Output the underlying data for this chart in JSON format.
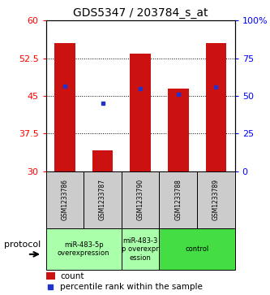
{
  "title": "GDS5347 / 203784_s_at",
  "samples": [
    "GSM1233786",
    "GSM1233787",
    "GSM1233790",
    "GSM1233788",
    "GSM1233789"
  ],
  "bar_values": [
    55.5,
    34.2,
    53.5,
    46.5,
    55.5
  ],
  "bar_base": 30,
  "percentile_values": [
    47.0,
    43.5,
    46.5,
    45.3,
    46.7
  ],
  "ylim_left": [
    30,
    60
  ],
  "yticks_left": [
    30,
    37.5,
    45,
    52.5,
    60
  ],
  "ytick_labels_right": [
    "0",
    "25",
    "50",
    "75",
    "100%"
  ],
  "yticks_right": [
    0,
    25,
    50,
    75,
    100
  ],
  "bar_color": "#cc1111",
  "percentile_color": "#2233cc",
  "group_defs": [
    {
      "start": 0,
      "end": 2,
      "label": "miR-483-5p\noverexpression",
      "color": "#aaffaa"
    },
    {
      "start": 2,
      "end": 3,
      "label": "miR-483-3\np overexpr\nession",
      "color": "#aaffaa"
    },
    {
      "start": 3,
      "end": 5,
      "label": "control",
      "color": "#44dd44"
    }
  ],
  "sample_box_color": "#cccccc",
  "protocol_label": "protocol",
  "legend_count": "count",
  "legend_percentile": "percentile rank within the sample",
  "grid_yticks": [
    37.5,
    45.0,
    52.5
  ]
}
